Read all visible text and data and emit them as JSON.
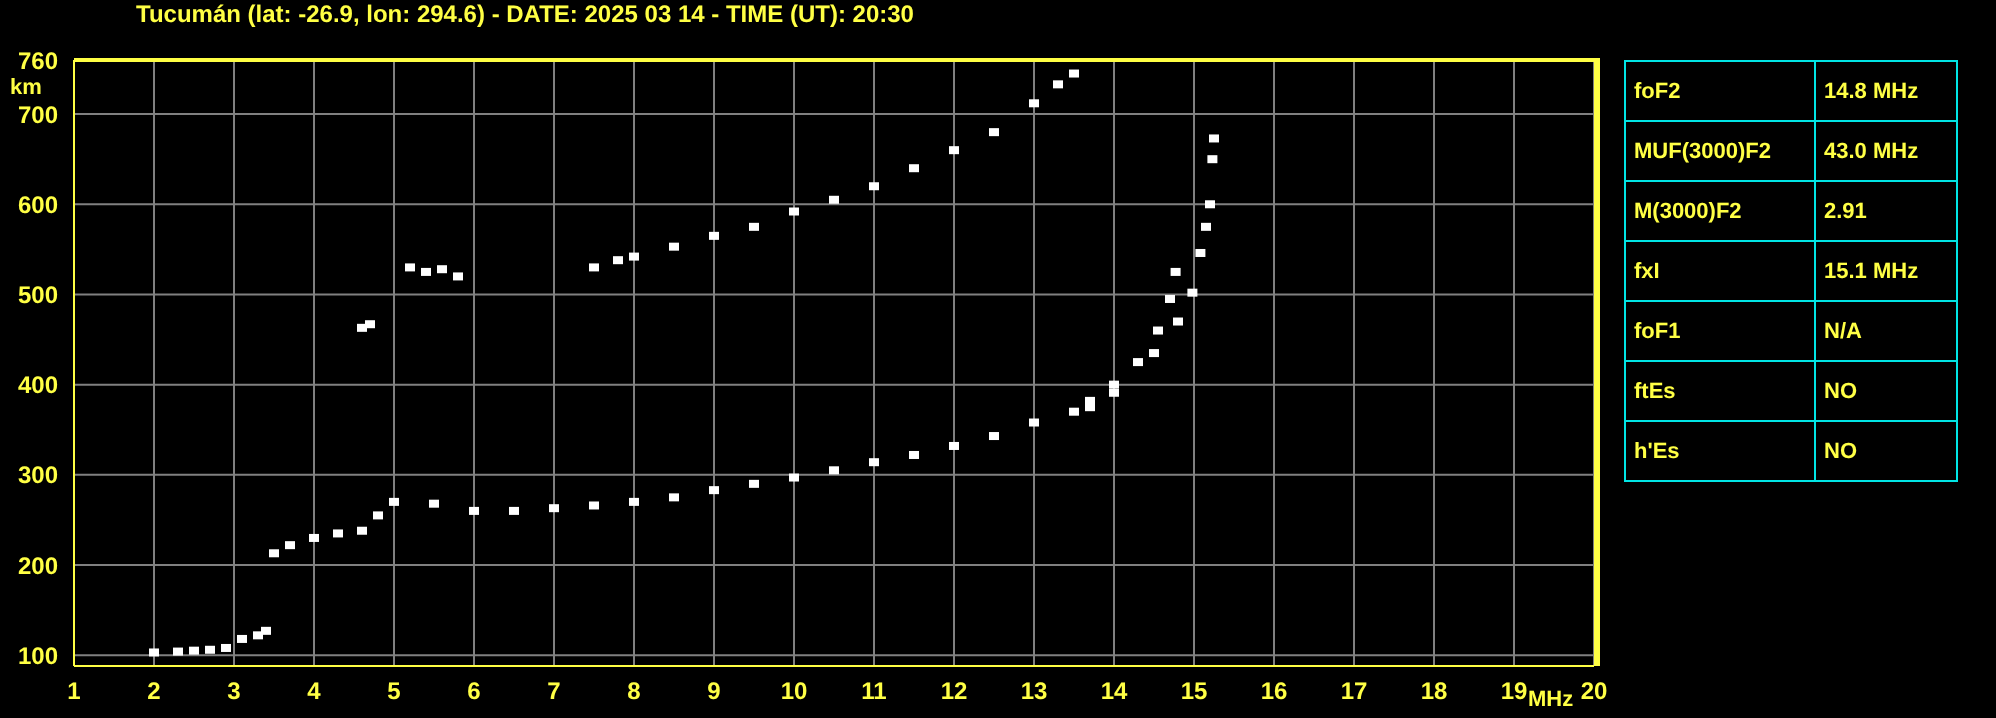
{
  "chart_data": {
    "type": "scatter",
    "title": "Tucumán (lat: -26.9, lon: 294.6) - DATE: 2025 03 14 - TIME (UT): 20:30",
    "xlabel": "MHz",
    "ylabel": "km",
    "xlim": [
      1,
      20
    ],
    "ylim": [
      88,
      760
    ],
    "xticks": [
      1,
      2,
      3,
      4,
      5,
      6,
      7,
      8,
      9,
      10,
      11,
      12,
      13,
      14,
      15,
      16,
      17,
      18,
      19,
      20
    ],
    "yticks": [
      100,
      200,
      300,
      400,
      500,
      600,
      700,
      760
    ],
    "grid": true,
    "marker": "square",
    "series": [
      {
        "color": "#ffffff",
        "x": [
          2.0,
          2.3,
          2.5,
          2.7,
          2.9,
          3.1,
          3.3,
          3.4
        ],
        "values": [
          103,
          104,
          105,
          106,
          108,
          118,
          122,
          127
        ]
      },
      {
        "color": "#ffffff",
        "x": [
          3.5,
          3.7,
          4.0,
          4.3,
          4.6,
          4.8,
          5.0,
          5.5,
          6.0,
          6.5,
          7.0,
          7.5,
          8.0,
          8.5,
          9.0,
          9.5,
          10.0,
          10.5,
          11.0,
          11.5,
          12.0,
          12.5,
          13.0,
          13.5
        ],
        "values": [
          213,
          222,
          230,
          235,
          238,
          255,
          270,
          268,
          260,
          260,
          263,
          266,
          270,
          275,
          283,
          290,
          297,
          305,
          314,
          322,
          332,
          343,
          358,
          370
        ]
      },
      {
        "color": "#ffffff",
        "x": [
          13.7,
          14.0,
          14.3,
          14.55,
          14.7,
          14.77
        ],
        "values": [
          382,
          400,
          425,
          460,
          495,
          525
        ]
      },
      {
        "color": "#ffffff",
        "x": [
          13.7,
          14.0,
          14.5,
          14.8,
          14.98,
          15.08,
          15.15,
          15.2,
          15.23,
          15.25
        ],
        "values": [
          375,
          391,
          435,
          470,
          502,
          546,
          575,
          600,
          650,
          673
        ]
      },
      {
        "color": "#ffffff",
        "x": [
          7.5,
          7.8,
          8.0,
          8.5,
          9.0,
          9.5,
          10.0,
          10.5,
          11.0,
          11.5,
          12.0,
          12.5,
          13.0,
          13.3,
          13.5
        ],
        "values": [
          530,
          538,
          542,
          553,
          565,
          575,
          592,
          605,
          620,
          640,
          660,
          680,
          712,
          733,
          745
        ]
      },
      {
        "color": "#ffffff",
        "x": [
          4.6,
          4.7,
          5.2,
          5.4,
          5.6,
          5.8
        ],
        "values": [
          463,
          467,
          530,
          525,
          528,
          520
        ]
      }
    ],
    "annotations": [
      "foF2",
      "14.8 MHz",
      "MUF(3000)F2",
      "43.0 MHz",
      "M(3000)F2",
      "2.91",
      "fxI",
      "15.1 MHz",
      "foF1",
      "N/A",
      "ftEs",
      "NO",
      "h'Es",
      "NO"
    ]
  }
}
